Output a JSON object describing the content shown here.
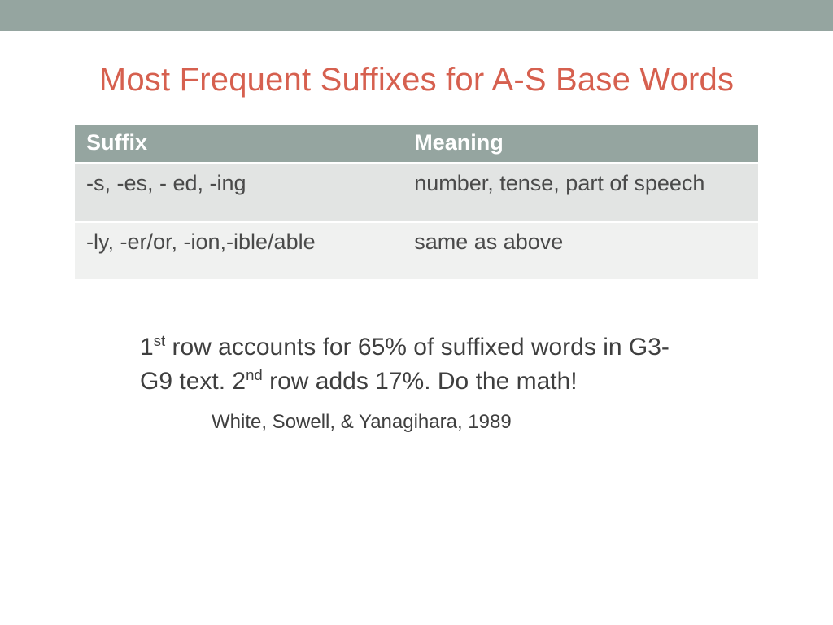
{
  "colors": {
    "top_bar_bg": "#95a5a0",
    "title_color": "#d6604f",
    "header_bg": "#95a5a0",
    "header_text": "#ffffff",
    "row_a_bg": "#e2e4e3",
    "row_b_bg": "#f0f1f0",
    "body_text": "#4a4a4a",
    "footnote_text": "#3f3f3f",
    "page_bg": "#ffffff"
  },
  "typography": {
    "title_fontsize": 40,
    "table_fontsize": 27,
    "footnote_fontsize": 30,
    "citation_fontsize": 24,
    "font_family": "Arial"
  },
  "title": "Most Frequent Suffixes for A-S Base Words",
  "table": {
    "type": "table",
    "columns": [
      "Suffix",
      "Meaning"
    ],
    "column_widths": [
      "48%",
      "52%"
    ],
    "rows": [
      {
        "suffix": "-s, -es, - ed, -ing",
        "meaning": "number, tense, part of speech"
      },
      {
        "suffix": "-ly, -er/or, -ion,-ible/able",
        "meaning": " same as above"
      }
    ]
  },
  "footnote": {
    "part1_num": "1",
    "part1_sup": "st",
    "part1_rest": " row accounts for 65% of suffixed words in G3-G9 text.  2",
    "part2_sup": "nd",
    "part2_rest": " row adds 17%. Do the math!"
  },
  "citation": "White, Sowell, & Yanagihara, 1989"
}
